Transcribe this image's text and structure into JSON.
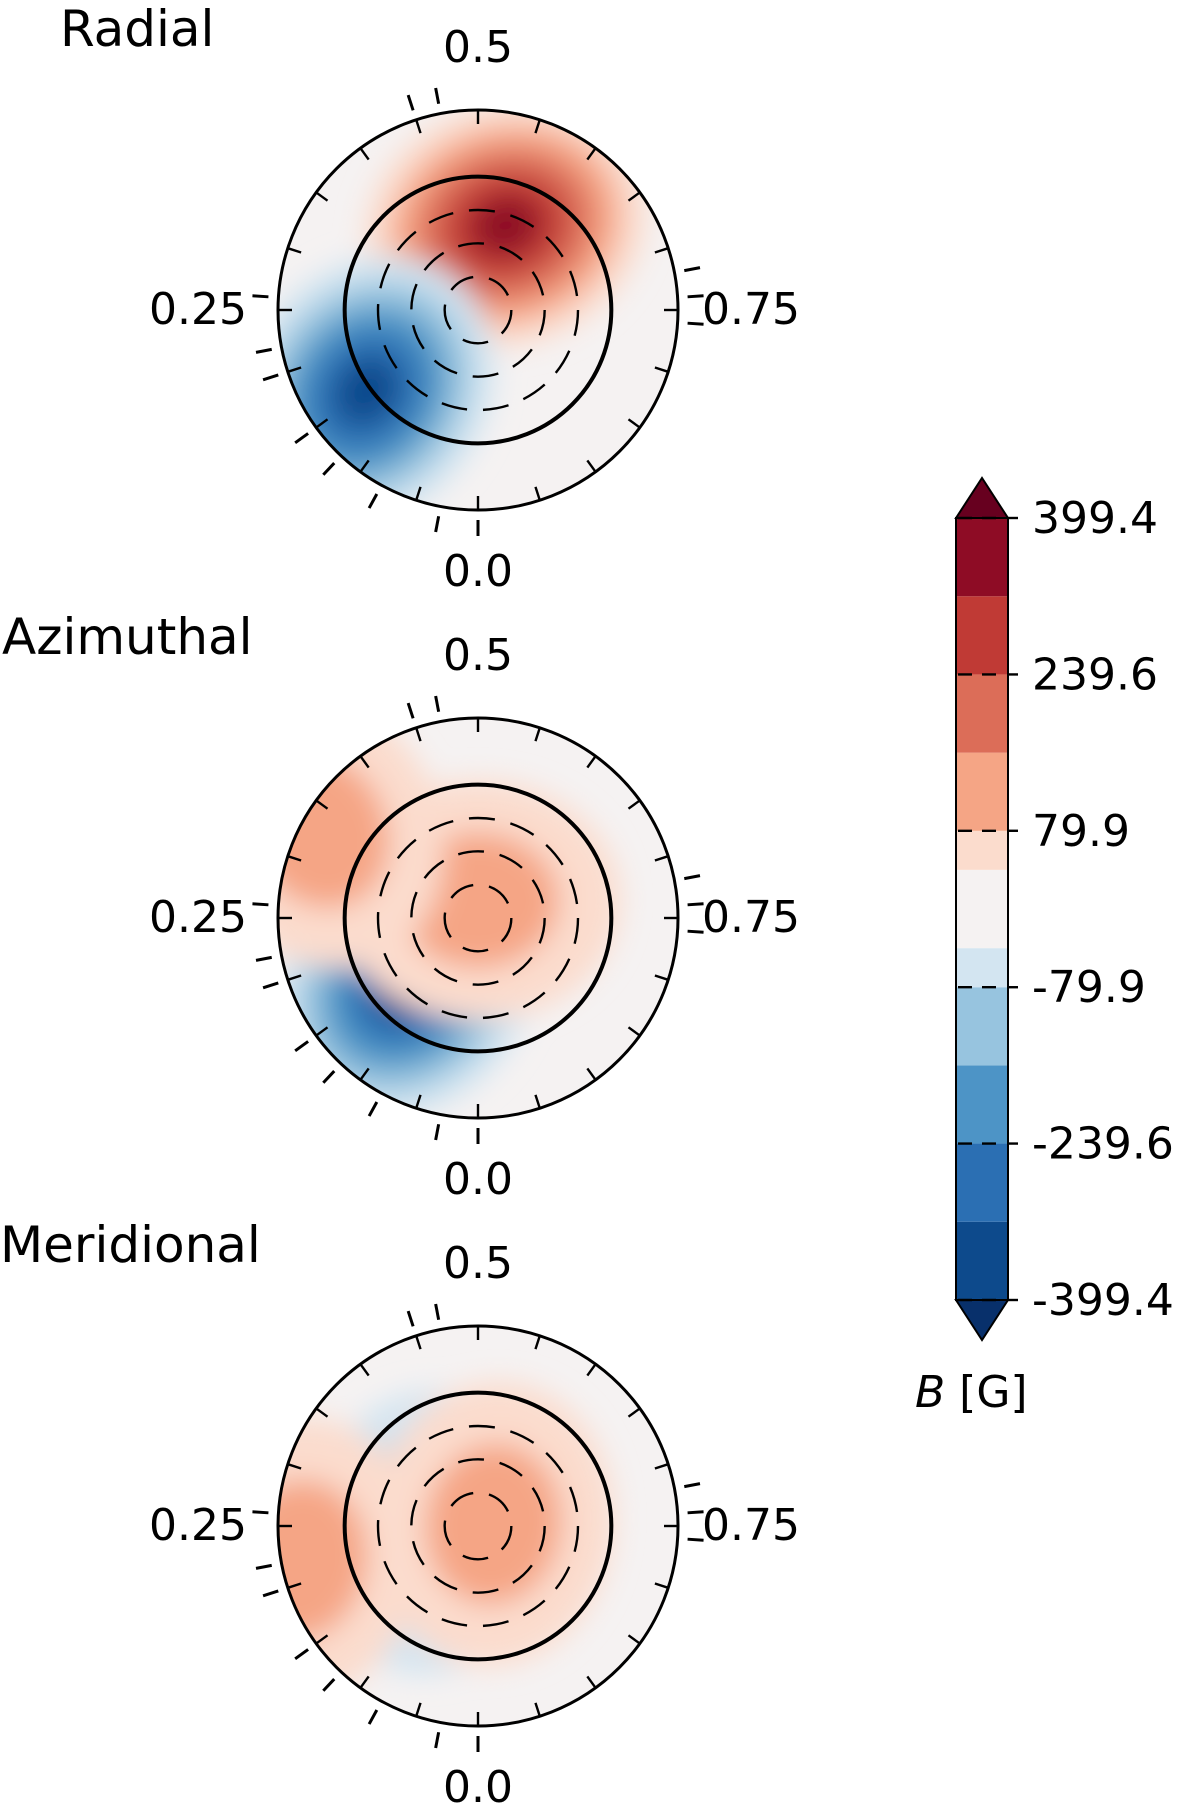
{
  "chart_data": {
    "type": "heatmap",
    "projection": "polar (stellar pole-on view)",
    "colormap": "RdBu_r, discrete",
    "panels": [
      {
        "title": "Radial",
        "phase_labels": [
          "0.0",
          "0.25",
          "0.5",
          "0.75"
        ],
        "features": [
          {
            "polarity": "positive",
            "peak_value": 319.5,
            "phase": 0.55,
            "colatitude_deg": 40
          },
          {
            "polarity": "negative",
            "peak_value": -319.5,
            "phase": 0.15,
            "colatitude_deg": 62
          }
        ]
      },
      {
        "title": "Azimuthal",
        "phase_labels": [
          "0.0",
          "0.25",
          "0.5",
          "0.75"
        ],
        "features": [
          {
            "polarity": "negative",
            "peak_value": -399.4,
            "phase": 0.13,
            "colatitude_deg": 45
          },
          {
            "polarity": "positive",
            "peak_value": 79.9,
            "phase": 0.5,
            "colatitude_deg": 8
          },
          {
            "polarity": "positive",
            "peak_value": 79.9,
            "phase": 0.33,
            "colatitude_deg": 82
          }
        ]
      },
      {
        "title": "Meridional",
        "phase_labels": [
          "0.0",
          "0.25",
          "0.5",
          "0.75"
        ],
        "features": [
          {
            "polarity": "negative",
            "peak_value": -159.7,
            "phase": 0.23,
            "colatitude_deg": 22
          },
          {
            "polarity": "positive",
            "peak_value": 119.8,
            "phase": 0.73,
            "colatitude_deg": 7
          },
          {
            "polarity": "positive",
            "peak_value": 79.9,
            "phase": 0.22,
            "colatitude_deg": 82
          }
        ]
      }
    ],
    "colorbar": {
      "label_var": "B",
      "label_unit": " [G]",
      "tick_labels": [
        "399.4",
        "239.6",
        "79.9",
        "-79.9",
        "-239.6",
        "-399.4"
      ],
      "ticks": [
        399.4,
        239.6,
        79.9,
        -79.9,
        -239.6,
        -399.4
      ],
      "range": [
        -399.4,
        399.4
      ],
      "levels": [
        -399.4,
        -319.5,
        -239.6,
        -159.7,
        -79.9,
        -40,
        40,
        79.9,
        159.7,
        239.6,
        319.5,
        399.4
      ],
      "colors": [
        "#0d4a8c",
        "#2b6fb3",
        "#4d94c6",
        "#97c4df",
        "#d3e5f1",
        "#f5f2f2",
        "#fbdccd",
        "#f5a585",
        "#dc6d58",
        "#c03a35",
        "#8e0c25"
      ],
      "extend": "both",
      "under_color": "#08306b",
      "over_color": "#67001f"
    },
    "observation_phases": [
      0.0,
      0.03,
      0.08,
      0.12,
      0.15,
      0.2,
      0.22,
      0.26,
      0.45,
      0.47,
      0.72,
      0.74,
      0.76
    ]
  }
}
